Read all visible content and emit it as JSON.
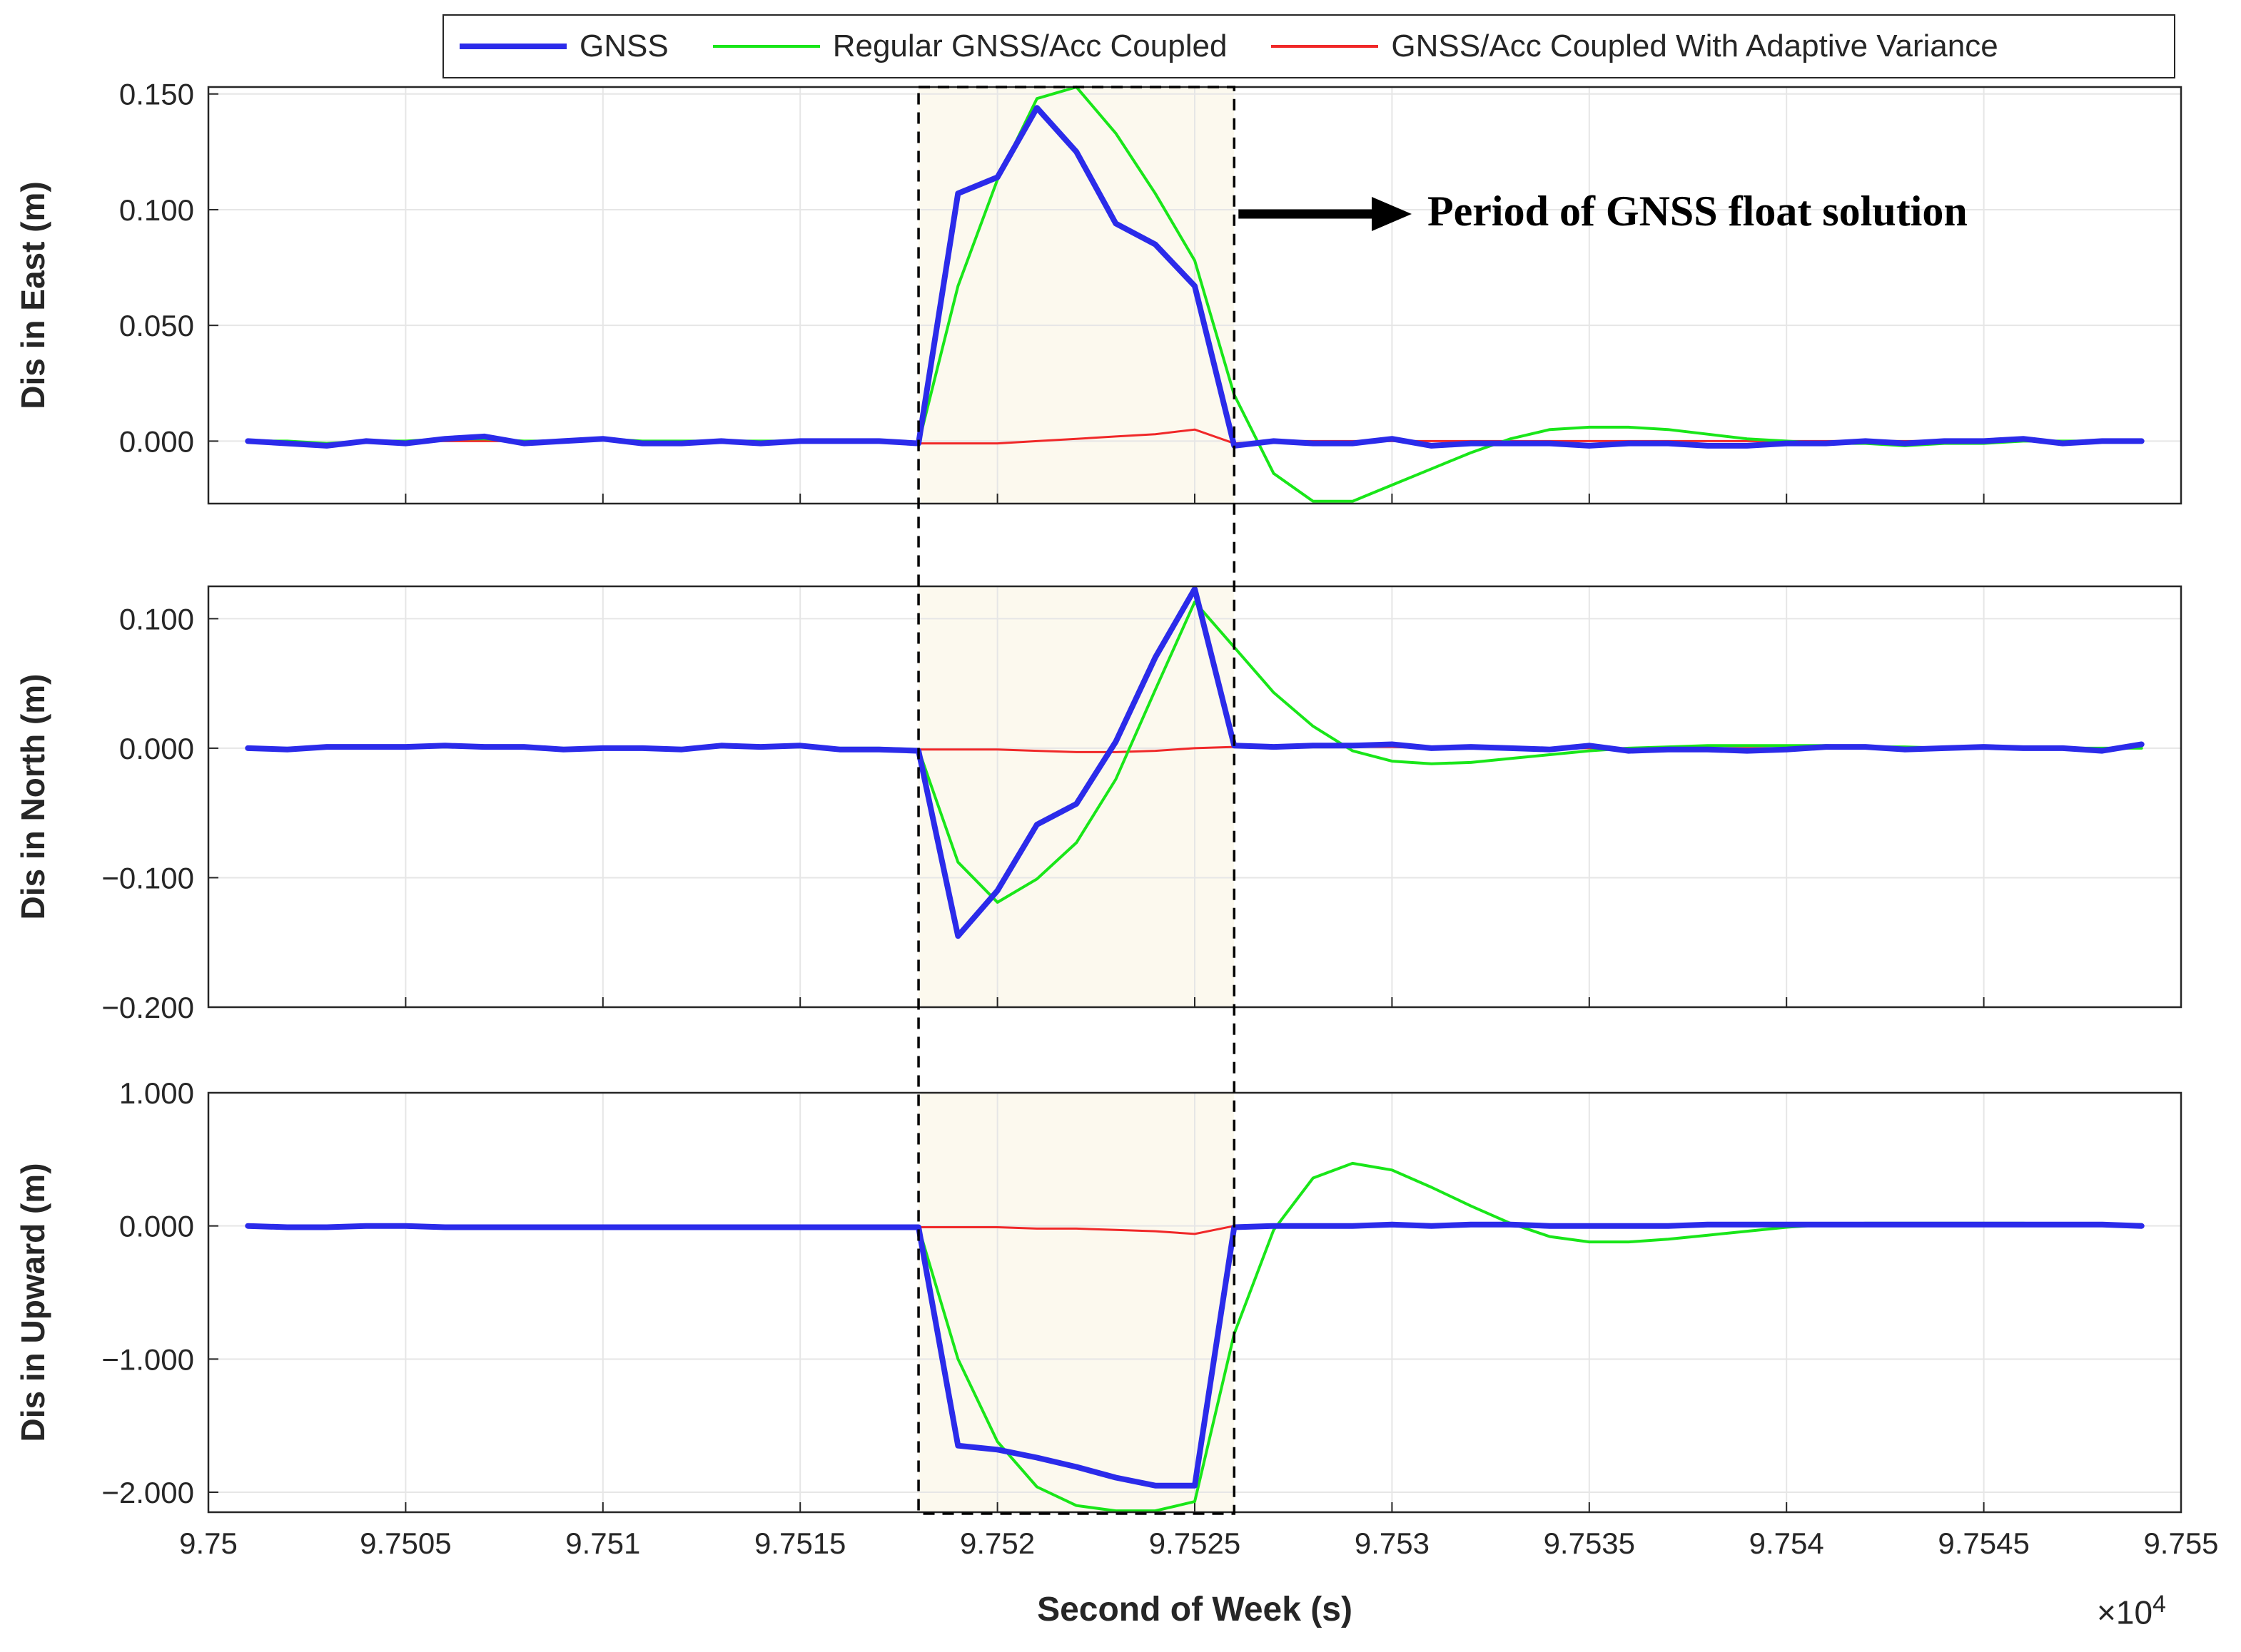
{
  "legend": {
    "items": [
      {
        "label": "GNSS",
        "color": "#2b2bea"
      },
      {
        "label": "Regular GNSS/Acc Coupled",
        "color": "#19e619"
      },
      {
        "label": "GNSS/Acc Coupled With Adaptive Variance",
        "color": "#f02828"
      }
    ]
  },
  "annotation": {
    "text": "Period of GNSS float solution"
  },
  "x_multiplier": {
    "base": "×10",
    "exponent": "4"
  },
  "chart_data": [
    {
      "type": "line",
      "title": "",
      "xlabel": "",
      "ylabel": "Dis in East (m)",
      "xlim": [
        97500,
        97550
      ],
      "ylim": [
        -0.027,
        0.153
      ],
      "yticks": [
        0,
        0.05,
        0.1,
        0.15
      ],
      "ytick_labels": [
        "0.000",
        "0.050",
        "0.100",
        "0.150"
      ],
      "grid": true,
      "highlight_x": [
        97518,
        97526
      ],
      "series": [
        {
          "name": "GNSS",
          "x": [
            97501,
            97502,
            97503,
            97504,
            97505,
            97506,
            97507,
            97508,
            97509,
            97510,
            97511,
            97512,
            97513,
            97514,
            97515,
            97516,
            97517,
            97518,
            97519,
            97520,
            97521,
            97522,
            97523,
            97524,
            97525,
            97526,
            97527,
            97528,
            97529,
            97530,
            97531,
            97532,
            97533,
            97534,
            97535,
            97536,
            97537,
            97538,
            97539,
            97540,
            97541,
            97542,
            97543,
            97544,
            97545,
            97546,
            97547,
            97548,
            97549
          ],
          "y": [
            0.0,
            -0.001,
            -0.002,
            0.0,
            -0.001,
            0.001,
            0.002,
            -0.001,
            0.0,
            0.001,
            -0.001,
            -0.001,
            0.0,
            -0.001,
            0.0,
            0.0,
            0.0,
            -0.001,
            0.107,
            0.114,
            0.144,
            0.125,
            0.094,
            0.085,
            0.067,
            -0.002,
            0.0,
            -0.001,
            -0.001,
            0.001,
            -0.002,
            -0.001,
            -0.001,
            -0.001,
            -0.002,
            -0.001,
            -0.001,
            -0.002,
            -0.002,
            -0.001,
            -0.001,
            0.0,
            -0.001,
            0.0,
            0.0,
            0.001,
            -0.001,
            0.0,
            0.0
          ]
        },
        {
          "name": "Regular GNSS/Acc Coupled",
          "x": [
            97501,
            97502,
            97503,
            97504,
            97505,
            97506,
            97507,
            97508,
            97509,
            97510,
            97511,
            97512,
            97513,
            97514,
            97515,
            97516,
            97517,
            97518,
            97519,
            97520,
            97521,
            97522,
            97523,
            97524,
            97525,
            97526,
            97527,
            97528,
            97529,
            97530,
            97531,
            97532,
            97533,
            97534,
            97535,
            97536,
            97537,
            97538,
            97539,
            97540,
            97541,
            97542,
            97543,
            97544,
            97545,
            97546,
            97547,
            97548,
            97549
          ],
          "y": [
            0.0,
            0.0,
            -0.001,
            0.0,
            0.0,
            0.001,
            0.001,
            0.0,
            0.0,
            0.001,
            0.0,
            0.0,
            0.0,
            0.0,
            0.0,
            0.0,
            0.0,
            -0.001,
            0.067,
            0.113,
            0.148,
            0.153,
            0.133,
            0.107,
            0.078,
            0.02,
            -0.014,
            -0.026,
            -0.026,
            -0.019,
            -0.012,
            -0.005,
            0.001,
            0.005,
            0.006,
            0.006,
            0.005,
            0.003,
            0.001,
            0.0,
            -0.001,
            -0.001,
            -0.002,
            -0.001,
            -0.001,
            0.0,
            0.0,
            0.0,
            0.0
          ]
        },
        {
          "name": "GNSS/Acc Coupled With Adaptive Variance",
          "x": [
            97501,
            97502,
            97503,
            97504,
            97505,
            97506,
            97507,
            97508,
            97509,
            97510,
            97511,
            97512,
            97513,
            97514,
            97515,
            97516,
            97517,
            97518,
            97519,
            97520,
            97521,
            97522,
            97523,
            97524,
            97525,
            97526,
            97527,
            97528,
            97529,
            97530,
            97531,
            97532,
            97533,
            97534,
            97535,
            97536,
            97537,
            97538,
            97539,
            97540,
            97541,
            97542,
            97543,
            97544,
            97545,
            97546,
            97547,
            97548,
            97549
          ],
          "y": [
            0.0,
            0.0,
            -0.001,
            0.0,
            0.0,
            0.0,
            0.0,
            0.0,
            0.0,
            0.001,
            0.0,
            0.0,
            0.0,
            0.0,
            0.0,
            0.0,
            0.0,
            -0.001,
            -0.001,
            -0.001,
            0.0,
            0.001,
            0.002,
            0.003,
            0.005,
            -0.001,
            0.0,
            0.0,
            0.0,
            0.0,
            0.0,
            0.0,
            0.0,
            0.0,
            0.0,
            0.0,
            0.0,
            0.0,
            0.0,
            0.0,
            0.0,
            0.0,
            0.0,
            0.0,
            0.0,
            0.0,
            0.0,
            0.0,
            0.0
          ]
        }
      ]
    },
    {
      "type": "line",
      "title": "",
      "xlabel": "",
      "ylabel": "Dis in North (m)",
      "xlim": [
        97500,
        97550
      ],
      "ylim": [
        -0.2,
        0.125
      ],
      "yticks": [
        -0.2,
        -0.1,
        0,
        0.1
      ],
      "ytick_labels": [
        "−0.200",
        "−0.100",
        "0.000",
        "0.100"
      ],
      "grid": true,
      "highlight_x": [
        97518,
        97526
      ],
      "series": [
        {
          "name": "GNSS",
          "x": [
            97501,
            97502,
            97503,
            97504,
            97505,
            97506,
            97507,
            97508,
            97509,
            97510,
            97511,
            97512,
            97513,
            97514,
            97515,
            97516,
            97517,
            97518,
            97519,
            97520,
            97521,
            97522,
            97523,
            97524,
            97525,
            97526,
            97527,
            97528,
            97529,
            97530,
            97531,
            97532,
            97533,
            97534,
            97535,
            97536,
            97537,
            97538,
            97539,
            97540,
            97541,
            97542,
            97543,
            97544,
            97545,
            97546,
            97547,
            97548,
            97549
          ],
          "y": [
            0.0,
            -0.001,
            0.001,
            0.001,
            0.001,
            0.002,
            0.001,
            0.001,
            -0.001,
            0.0,
            0.0,
            -0.001,
            0.002,
            0.001,
            0.002,
            -0.001,
            -0.001,
            -0.002,
            -0.145,
            -0.11,
            -0.059,
            -0.043,
            0.005,
            0.07,
            0.123,
            0.002,
            0.001,
            0.002,
            0.002,
            0.003,
            0.0,
            0.001,
            0.0,
            -0.001,
            0.002,
            -0.002,
            -0.001,
            -0.001,
            -0.002,
            -0.001,
            0.001,
            0.001,
            -0.001,
            0.0,
            0.001,
            0.0,
            0.0,
            -0.002,
            0.003
          ]
        },
        {
          "name": "Regular GNSS/Acc Coupled",
          "x": [
            97501,
            97502,
            97503,
            97504,
            97505,
            97506,
            97507,
            97508,
            97509,
            97510,
            97511,
            97512,
            97513,
            97514,
            97515,
            97516,
            97517,
            97518,
            97519,
            97520,
            97521,
            97522,
            97523,
            97524,
            97525,
            97526,
            97527,
            97528,
            97529,
            97530,
            97531,
            97532,
            97533,
            97534,
            97535,
            97536,
            97537,
            97538,
            97539,
            97540,
            97541,
            97542,
            97543,
            97544,
            97545,
            97546,
            97547,
            97548,
            97549
          ],
          "y": [
            0.0,
            0.0,
            0.0,
            0.001,
            0.001,
            0.001,
            0.001,
            0.001,
            0.0,
            0.0,
            0.0,
            0.0,
            0.001,
            0.001,
            0.001,
            0.0,
            0.0,
            -0.001,
            -0.088,
            -0.119,
            -0.101,
            -0.073,
            -0.024,
            0.045,
            0.113,
            0.078,
            0.043,
            0.017,
            -0.002,
            -0.01,
            -0.012,
            -0.011,
            -0.008,
            -0.005,
            -0.002,
            0.0,
            0.001,
            0.002,
            0.002,
            0.002,
            0.002,
            0.001,
            0.001,
            0.0,
            0.0,
            0.0,
            0.0,
            0.0,
            0.0
          ]
        },
        {
          "name": "GNSS/Acc Coupled With Adaptive Variance",
          "x": [
            97501,
            97502,
            97503,
            97504,
            97505,
            97506,
            97507,
            97508,
            97509,
            97510,
            97511,
            97512,
            97513,
            97514,
            97515,
            97516,
            97517,
            97518,
            97519,
            97520,
            97521,
            97522,
            97523,
            97524,
            97525,
            97526,
            97527,
            97528,
            97529,
            97530,
            97531,
            97532,
            97533,
            97534,
            97535,
            97536,
            97537,
            97538,
            97539,
            97540,
            97541,
            97542,
            97543,
            97544,
            97545,
            97546,
            97547,
            97548,
            97549
          ],
          "y": [
            0.0,
            0.0,
            0.0,
            0.001,
            0.001,
            0.001,
            0.001,
            0.001,
            0.0,
            0.0,
            0.0,
            0.0,
            0.001,
            0.001,
            0.001,
            0.0,
            0.0,
            -0.001,
            -0.001,
            -0.001,
            -0.002,
            -0.003,
            -0.003,
            -0.002,
            0.0,
            0.001,
            0.001,
            0.001,
            0.001,
            0.001,
            0.0,
            0.0,
            0.0,
            0.0,
            0.0,
            0.0,
            0.0,
            0.0,
            0.0,
            0.0,
            0.0,
            0.0,
            0.0,
            0.0,
            0.0,
            0.0,
            0.0,
            0.0,
            0.0
          ]
        }
      ]
    },
    {
      "type": "line",
      "title": "",
      "xlabel": "Second of Week (s)",
      "ylabel": "Dis in Upward (m)",
      "xlim": [
        97500,
        97550
      ],
      "ylim": [
        -2.15,
        1.0
      ],
      "yticks": [
        -2,
        -1,
        0,
        1
      ],
      "ytick_labels": [
        "−2.000",
        "−1.000",
        "0.000",
        "1.000"
      ],
      "xticks": [
        97500,
        97505,
        97510,
        97515,
        97520,
        97525,
        97530,
        97535,
        97540,
        97545,
        97550
      ],
      "xtick_labels": [
        "9.75",
        "9.7505",
        "9.751",
        "9.7515",
        "9.752",
        "9.7525",
        "9.753",
        "9.7535",
        "9.754",
        "9.7545",
        "9.755"
      ],
      "grid": true,
      "highlight_x": [
        97518,
        97526
      ],
      "series": [
        {
          "name": "GNSS",
          "x": [
            97501,
            97502,
            97503,
            97504,
            97505,
            97506,
            97507,
            97508,
            97509,
            97510,
            97511,
            97512,
            97513,
            97514,
            97515,
            97516,
            97517,
            97518,
            97519,
            97520,
            97521,
            97522,
            97523,
            97524,
            97525,
            97526,
            97527,
            97528,
            97529,
            97530,
            97531,
            97532,
            97533,
            97534,
            97535,
            97536,
            97537,
            97538,
            97539,
            97540,
            97541,
            97542,
            97543,
            97544,
            97545,
            97546,
            97547,
            97548,
            97549
          ],
          "y": [
            0.0,
            -0.01,
            -0.01,
            0.0,
            0.0,
            -0.01,
            -0.01,
            -0.01,
            -0.01,
            -0.01,
            -0.01,
            -0.01,
            -0.01,
            -0.01,
            -0.01,
            -0.01,
            -0.01,
            -0.01,
            -1.65,
            -1.68,
            -1.74,
            -1.81,
            -1.89,
            -1.95,
            -1.95,
            -0.01,
            0.0,
            0.0,
            0.0,
            0.01,
            0.0,
            0.01,
            0.01,
            0.0,
            0.0,
            0.0,
            0.0,
            0.01,
            0.01,
            0.01,
            0.01,
            0.01,
            0.01,
            0.01,
            0.01,
            0.01,
            0.01,
            0.01,
            0.0
          ]
        },
        {
          "name": "Regular GNSS/Acc Coupled",
          "x": [
            97501,
            97502,
            97503,
            97504,
            97505,
            97506,
            97507,
            97508,
            97509,
            97510,
            97511,
            97512,
            97513,
            97514,
            97515,
            97516,
            97517,
            97518,
            97519,
            97520,
            97521,
            97522,
            97523,
            97524,
            97525,
            97526,
            97527,
            97528,
            97529,
            97530,
            97531,
            97532,
            97533,
            97534,
            97535,
            97536,
            97537,
            97538,
            97539,
            97540,
            97541,
            97542,
            97543,
            97544,
            97545,
            97546,
            97547,
            97548,
            97549
          ],
          "y": [
            0.0,
            0.0,
            0.0,
            0.0,
            0.0,
            0.0,
            0.0,
            0.0,
            0.0,
            0.0,
            0.0,
            0.0,
            0.0,
            0.0,
            0.0,
            0.0,
            0.0,
            -0.01,
            -1.0,
            -1.62,
            -1.96,
            -2.1,
            -2.14,
            -2.14,
            -2.07,
            -0.81,
            -0.03,
            0.36,
            0.47,
            0.42,
            0.29,
            0.15,
            0.02,
            -0.08,
            -0.12,
            -0.12,
            -0.1,
            -0.07,
            -0.04,
            -0.01,
            0.01,
            0.02,
            0.02,
            0.02,
            0.02,
            0.02,
            0.01,
            0.01,
            0.01
          ]
        },
        {
          "name": "GNSS/Acc Coupled With Adaptive Variance",
          "x": [
            97501,
            97502,
            97503,
            97504,
            97505,
            97506,
            97507,
            97508,
            97509,
            97510,
            97511,
            97512,
            97513,
            97514,
            97515,
            97516,
            97517,
            97518,
            97519,
            97520,
            97521,
            97522,
            97523,
            97524,
            97525,
            97526,
            97527,
            97528,
            97529,
            97530,
            97531,
            97532,
            97533,
            97534,
            97535,
            97536,
            97537,
            97538,
            97539,
            97540,
            97541,
            97542,
            97543,
            97544,
            97545,
            97546,
            97547,
            97548,
            97549
          ],
          "y": [
            0.0,
            0.0,
            0.0,
            0.0,
            0.0,
            0.0,
            0.0,
            0.0,
            0.0,
            0.0,
            0.0,
            0.0,
            0.0,
            0.0,
            0.0,
            0.0,
            0.0,
            -0.01,
            -0.01,
            -0.01,
            -0.02,
            -0.02,
            -0.03,
            -0.04,
            -0.06,
            0.0,
            0.0,
            0.0,
            0.0,
            0.0,
            0.0,
            0.0,
            0.0,
            0.0,
            0.0,
            0.0,
            0.0,
            0.0,
            0.0,
            0.0,
            0.0,
            0.0,
            0.0,
            0.0,
            0.0,
            0.0,
            0.0,
            0.0,
            0.0
          ]
        }
      ]
    }
  ]
}
